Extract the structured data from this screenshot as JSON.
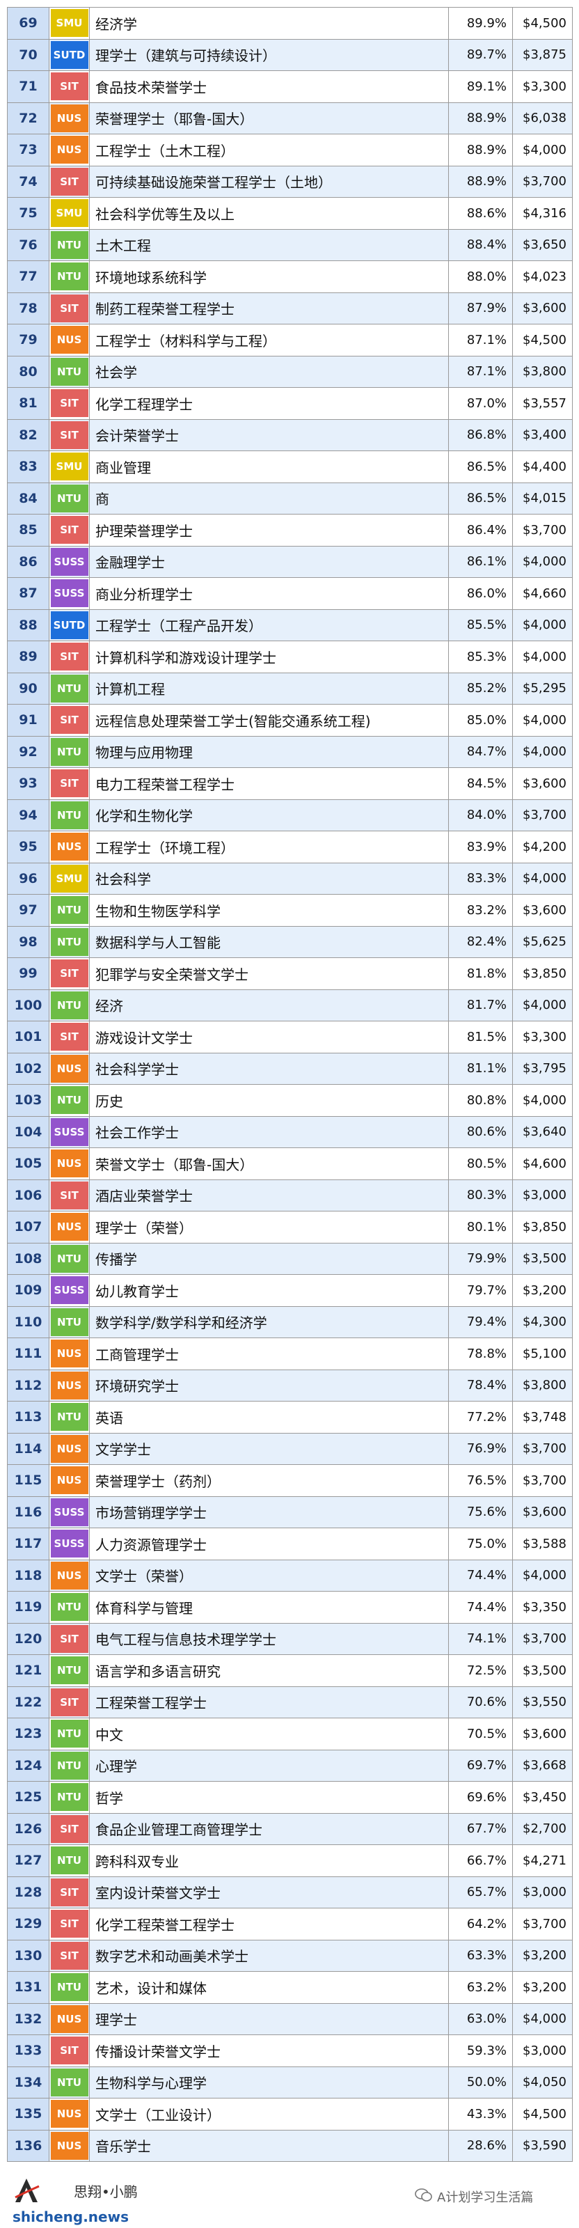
{
  "uni_colors": {
    "SMU": "#e1c200",
    "SUTD": "#1e6fdb",
    "SIT": "#e2615e",
    "NUS": "#f07f1d",
    "NTU": "#6dbd45",
    "SUSS": "#9354cc"
  },
  "rows": [
    {
      "rank": "69",
      "uni": "SMU",
      "name": "经济学",
      "pct": "89.9%",
      "salary": "$4,500"
    },
    {
      "rank": "70",
      "uni": "SUTD",
      "name": "理学士（建筑与可持续设计）",
      "pct": "89.7%",
      "salary": "$3,875"
    },
    {
      "rank": "71",
      "uni": "SIT",
      "name": "食品技术荣誉学士",
      "pct": "89.1%",
      "salary": "$3,300"
    },
    {
      "rank": "72",
      "uni": "NUS",
      "name": "荣誉理学士（耶鲁-国大）",
      "pct": "88.9%",
      "salary": "$6,038"
    },
    {
      "rank": "73",
      "uni": "NUS",
      "name": "工程学士（土木工程）",
      "pct": "88.9%",
      "salary": "$4,000"
    },
    {
      "rank": "74",
      "uni": "SIT",
      "name": "可持续基础设施荣誉工程学士（土地）",
      "pct": "88.9%",
      "salary": "$3,700"
    },
    {
      "rank": "75",
      "uni": "SMU",
      "name": "社会科学优等生及以上",
      "pct": "88.6%",
      "salary": "$4,316"
    },
    {
      "rank": "76",
      "uni": "NTU",
      "name": "土木工程",
      "pct": "88.4%",
      "salary": "$3,650"
    },
    {
      "rank": "77",
      "uni": "NTU",
      "name": "环境地球系统科学",
      "pct": "88.0%",
      "salary": "$4,023"
    },
    {
      "rank": "78",
      "uni": "SIT",
      "name": "制药工程荣誉工程学士",
      "pct": "87.9%",
      "salary": "$3,600"
    },
    {
      "rank": "79",
      "uni": "NUS",
      "name": "工程学士（材料科学与工程）",
      "pct": "87.1%",
      "salary": "$4,500"
    },
    {
      "rank": "80",
      "uni": "NTU",
      "name": "社会学",
      "pct": "87.1%",
      "salary": "$3,800"
    },
    {
      "rank": "81",
      "uni": "SIT",
      "name": "化学工程理学士",
      "pct": "87.0%",
      "salary": "$3,557"
    },
    {
      "rank": "82",
      "uni": "SIT",
      "name": "会计荣誉学士",
      "pct": "86.8%",
      "salary": "$3,400"
    },
    {
      "rank": "83",
      "uni": "SMU",
      "name": "商业管理",
      "pct": "86.5%",
      "salary": "$4,400"
    },
    {
      "rank": "84",
      "uni": "NTU",
      "name": "商",
      "pct": "86.5%",
      "salary": "$4,015"
    },
    {
      "rank": "85",
      "uni": "SIT",
      "name": "护理荣誉理学士",
      "pct": "86.4%",
      "salary": "$3,700"
    },
    {
      "rank": "86",
      "uni": "SUSS",
      "name": "金融理学士",
      "pct": "86.1%",
      "salary": "$4,000"
    },
    {
      "rank": "87",
      "uni": "SUSS",
      "name": "商业分析理学士",
      "pct": "86.0%",
      "salary": "$4,660"
    },
    {
      "rank": "88",
      "uni": "SUTD",
      "name": "工程学士（工程产品开发）",
      "pct": "85.5%",
      "salary": "$4,000"
    },
    {
      "rank": "89",
      "uni": "SIT",
      "name": "计算机科学和游戏设计理学士",
      "pct": "85.3%",
      "salary": "$4,000"
    },
    {
      "rank": "90",
      "uni": "NTU",
      "name": "计算机工程",
      "pct": "85.2%",
      "salary": "$5,295"
    },
    {
      "rank": "91",
      "uni": "SIT",
      "name": "远程信息处理荣誉工学士(智能交通系统工程)",
      "pct": "85.0%",
      "salary": "$4,000"
    },
    {
      "rank": "92",
      "uni": "NTU",
      "name": "物理与应用物理",
      "pct": "84.7%",
      "salary": "$4,000"
    },
    {
      "rank": "93",
      "uni": "SIT",
      "name": "电力工程荣誉工程学士",
      "pct": "84.5%",
      "salary": "$3,600"
    },
    {
      "rank": "94",
      "uni": "NTU",
      "name": "化学和生物化学",
      "pct": "84.0%",
      "salary": "$3,700"
    },
    {
      "rank": "95",
      "uni": "NUS",
      "name": "工程学士（环境工程）",
      "pct": "83.9%",
      "salary": "$4,200"
    },
    {
      "rank": "96",
      "uni": "SMU",
      "name": "社会科学",
      "pct": "83.3%",
      "salary": "$4,000"
    },
    {
      "rank": "97",
      "uni": "NTU",
      "name": "生物和生物医学科学",
      "pct": "83.2%",
      "salary": "$3,600"
    },
    {
      "rank": "98",
      "uni": "NTU",
      "name": "数据科学与人工智能",
      "pct": "82.4%",
      "salary": "$5,625"
    },
    {
      "rank": "99",
      "uni": "SIT",
      "name": "犯罪学与安全荣誉文学士",
      "pct": "81.8%",
      "salary": "$3,850"
    },
    {
      "rank": "100",
      "uni": "NTU",
      "name": "经济",
      "pct": "81.7%",
      "salary": "$4,000"
    },
    {
      "rank": "101",
      "uni": "SIT",
      "name": "游戏设计文学士",
      "pct": "81.5%",
      "salary": "$3,300"
    },
    {
      "rank": "102",
      "uni": "NUS",
      "name": "社会科学学士",
      "pct": "81.1%",
      "salary": "$3,795"
    },
    {
      "rank": "103",
      "uni": "NTU",
      "name": "历史",
      "pct": "80.8%",
      "salary": "$4,000"
    },
    {
      "rank": "104",
      "uni": "SUSS",
      "name": "社会工作学士",
      "pct": "80.6%",
      "salary": "$3,640"
    },
    {
      "rank": "105",
      "uni": "NUS",
      "name": "荣誉文学士（耶鲁-国大）",
      "pct": "80.5%",
      "salary": "$4,600"
    },
    {
      "rank": "106",
      "uni": "SIT",
      "name": "酒店业荣誉学士",
      "pct": "80.3%",
      "salary": "$3,000"
    },
    {
      "rank": "107",
      "uni": "NUS",
      "name": "理学士（荣誉）",
      "pct": "80.1%",
      "salary": "$3,850"
    },
    {
      "rank": "108",
      "uni": "NTU",
      "name": "传播学",
      "pct": "79.9%",
      "salary": "$3,500"
    },
    {
      "rank": "109",
      "uni": "SUSS",
      "name": "幼儿教育学士",
      "pct": "79.7%",
      "salary": "$3,200"
    },
    {
      "rank": "110",
      "uni": "NTU",
      "name": "数学科学/数学科学和经济学",
      "pct": "79.4%",
      "salary": "$4,300"
    },
    {
      "rank": "111",
      "uni": "NUS",
      "name": "工商管理学士",
      "pct": "78.8%",
      "salary": "$5,100"
    },
    {
      "rank": "112",
      "uni": "NUS",
      "name": "环境研究学士",
      "pct": "78.4%",
      "salary": "$3,800"
    },
    {
      "rank": "113",
      "uni": "NTU",
      "name": "英语",
      "pct": "77.2%",
      "salary": "$3,748"
    },
    {
      "rank": "114",
      "uni": "NUS",
      "name": "文学学士",
      "pct": "76.9%",
      "salary": "$3,700"
    },
    {
      "rank": "115",
      "uni": "NUS",
      "name": "荣誉理学士（药剂）",
      "pct": "76.5%",
      "salary": "$3,700"
    },
    {
      "rank": "116",
      "uni": "SUSS",
      "name": "市场营销理学学士",
      "pct": "75.6%",
      "salary": "$3,600"
    },
    {
      "rank": "117",
      "uni": "SUSS",
      "name": "人力资源管理学士",
      "pct": "75.0%",
      "salary": "$3,588"
    },
    {
      "rank": "118",
      "uni": "NUS",
      "name": "文学士（荣誉）",
      "pct": "74.4%",
      "salary": "$4,000"
    },
    {
      "rank": "119",
      "uni": "NTU",
      "name": "体育科学与管理",
      "pct": "74.4%",
      "salary": "$3,350"
    },
    {
      "rank": "120",
      "uni": "SIT",
      "name": "电气工程与信息技术理学学士",
      "pct": "74.1%",
      "salary": "$3,700"
    },
    {
      "rank": "121",
      "uni": "NTU",
      "name": "语言学和多语言研究",
      "pct": "72.5%",
      "salary": "$3,500"
    },
    {
      "rank": "122",
      "uni": "SIT",
      "name": "工程荣誉工程学士",
      "pct": "70.6%",
      "salary": "$3,550"
    },
    {
      "rank": "123",
      "uni": "NTU",
      "name": "中文",
      "pct": "70.5%",
      "salary": "$3,600"
    },
    {
      "rank": "124",
      "uni": "NTU",
      "name": "心理学",
      "pct": "69.7%",
      "salary": "$3,668"
    },
    {
      "rank": "125",
      "uni": "NTU",
      "name": "哲学",
      "pct": "69.6%",
      "salary": "$3,450"
    },
    {
      "rank": "126",
      "uni": "SIT",
      "name": "食品企业管理工商管理学士",
      "pct": "67.7%",
      "salary": "$2,700"
    },
    {
      "rank": "127",
      "uni": "NTU",
      "name": "跨科科双专业",
      "pct": "66.7%",
      "salary": "$4,271"
    },
    {
      "rank": "128",
      "uni": "SIT",
      "name": "室内设计荣誉文学士",
      "pct": "65.7%",
      "salary": "$3,000"
    },
    {
      "rank": "129",
      "uni": "SIT",
      "name": "化学工程荣誉工程学士",
      "pct": "64.2%",
      "salary": "$3,700"
    },
    {
      "rank": "130",
      "uni": "SIT",
      "name": "数字艺术和动画美术学士",
      "pct": "63.3%",
      "salary": "$3,200"
    },
    {
      "rank": "131",
      "uni": "NTU",
      "name": "艺术，设计和媒体",
      "pct": "63.2%",
      "salary": "$3,200"
    },
    {
      "rank": "132",
      "uni": "NUS",
      "name": "理学士",
      "pct": "63.0%",
      "salary": "$4,000"
    },
    {
      "rank": "133",
      "uni": "SIT",
      "name": "传播设计荣誉文学士",
      "pct": "59.3%",
      "salary": "$3,000"
    },
    {
      "rank": "134",
      "uni": "NTU",
      "name": "生物科学与心理学",
      "pct": "50.0%",
      "salary": "$4,050"
    },
    {
      "rank": "135",
      "uni": "NUS",
      "name": "文学士（工业设计）",
      "pct": "43.3%",
      "salary": "$4,500"
    },
    {
      "rank": "136",
      "uni": "NUS",
      "name": "音乐学士",
      "pct": "28.6%",
      "salary": "$3,590"
    }
  ],
  "footer": {
    "brand_name": "思翔•小鹏",
    "site": "shicheng.news",
    "wechat_account": "A计划学习生活篇",
    "logo_icon": "stylized-a-logo-icon",
    "wechat_icon": "wechat-bubble-icon"
  }
}
